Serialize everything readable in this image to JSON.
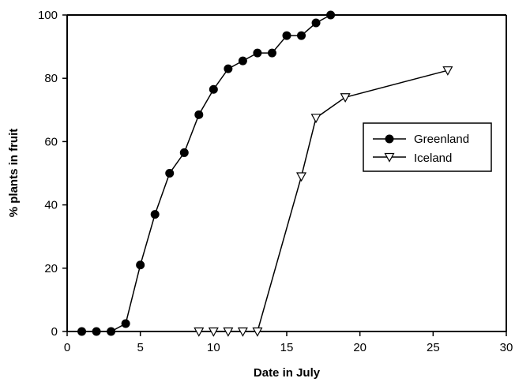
{
  "chart_data": {
    "type": "line",
    "xlabel": "Date in July",
    "ylabel": "% plants in fruit",
    "xlim": [
      0,
      30
    ],
    "ylim": [
      0,
      100
    ],
    "xticks": [
      0,
      5,
      10,
      15,
      20,
      25,
      30
    ],
    "yticks": [
      0,
      20,
      40,
      60,
      80,
      100
    ],
    "grid": false,
    "legend_position": "right",
    "series": [
      {
        "name": "Greenland",
        "marker": "filled-circle",
        "x": [
          1,
          2,
          3,
          4,
          5,
          6,
          7,
          8,
          9,
          10,
          11,
          12,
          13,
          14,
          15,
          16,
          17,
          18
        ],
        "y": [
          0,
          0,
          0,
          2.5,
          21,
          37,
          50,
          56.5,
          68.5,
          76.5,
          83,
          85.5,
          88,
          88,
          93.5,
          93.5,
          97.5,
          100
        ]
      },
      {
        "name": "Iceland",
        "marker": "open-triangle-down",
        "x": [
          9,
          10,
          11,
          12,
          13,
          16,
          17,
          19,
          26
        ],
        "y": [
          0,
          0,
          0,
          0,
          0,
          49,
          67.5,
          74,
          82.5
        ]
      }
    ]
  }
}
